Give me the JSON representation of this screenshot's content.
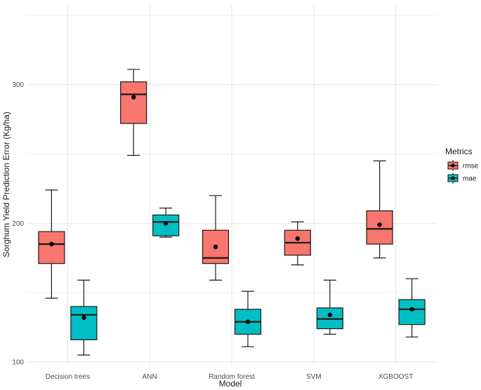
{
  "chart_data": {
    "type": "boxplot",
    "title": "",
    "xlabel": "Model",
    "ylabel": "Sorghum Yield Prediction Error (Kg/ha)",
    "ylim": [
      98,
      358
    ],
    "yticks": [
      100,
      200,
      300
    ],
    "minor_yticks": [
      150,
      250,
      350
    ],
    "categories": [
      "Decision trees",
      "ANN",
      "Random forest",
      "SVM",
      "XGBOOST"
    ],
    "legend": {
      "title": "Metrics",
      "position": "right"
    },
    "series": [
      {
        "name": "rmse",
        "color": "#F8766D",
        "boxes": [
          {
            "whisker_low": 146,
            "q1": 171,
            "median": 185,
            "q3": 194,
            "whisker_high": 224,
            "mean": 185
          },
          {
            "whisker_low": 249,
            "q1": 272,
            "median": 293,
            "q3": 302,
            "whisker_high": 311,
            "mean": 291
          },
          {
            "whisker_low": 159,
            "q1": 171,
            "median": 175,
            "q3": 195,
            "whisker_high": 220,
            "mean": 183
          },
          {
            "whisker_low": 170,
            "q1": 177,
            "median": 186,
            "q3": 195,
            "whisker_high": 201,
            "mean": 189
          },
          {
            "whisker_low": 175,
            "q1": 185,
            "median": 196,
            "q3": 209,
            "whisker_high": 245,
            "mean": 199
          }
        ]
      },
      {
        "name": "mae",
        "color": "#00BFC4",
        "boxes": [
          {
            "whisker_low": 105,
            "q1": 116,
            "median": 134,
            "q3": 140,
            "whisker_high": 159,
            "mean": 132
          },
          {
            "whisker_low": 190,
            "q1": 191,
            "median": 201,
            "q3": 206,
            "whisker_high": 211,
            "mean": 200
          },
          {
            "whisker_low": 111,
            "q1": 120,
            "median": 129,
            "q3": 138,
            "whisker_high": 151,
            "mean": 129
          },
          {
            "whisker_low": 120,
            "q1": 124,
            "median": 131,
            "q3": 139,
            "whisker_high": 159,
            "mean": 134
          },
          {
            "whisker_low": 118,
            "q1": 127,
            "median": 138,
            "q3": 145,
            "whisker_high": 160,
            "mean": 138
          }
        ]
      }
    ]
  }
}
